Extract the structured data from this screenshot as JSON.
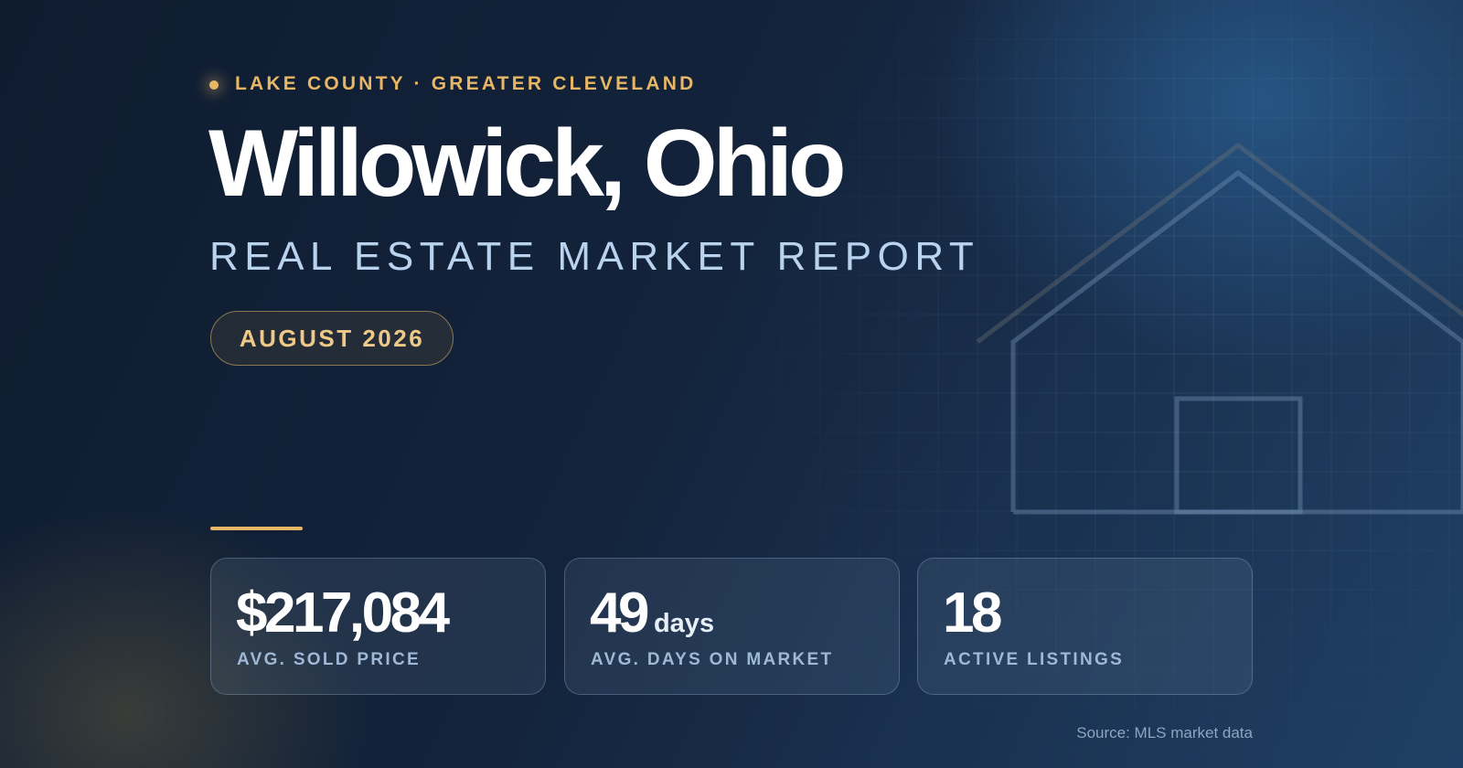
{
  "eyebrow": "LAKE COUNTY · GREATER CLEVELAND",
  "title": "Willowick, Ohio",
  "subtitle": "REAL ESTATE MARKET REPORT",
  "badge": "AUGUST 2026",
  "stats": [
    {
      "value": "$217,084",
      "label": "AVG. SOLD PRICE"
    },
    {
      "value": "49",
      "unit": "days",
      "label": "AVG. DAYS ON MARKET"
    },
    {
      "value": "18",
      "label": "ACTIVE LISTINGS"
    }
  ],
  "source": "Source: MLS market data"
}
